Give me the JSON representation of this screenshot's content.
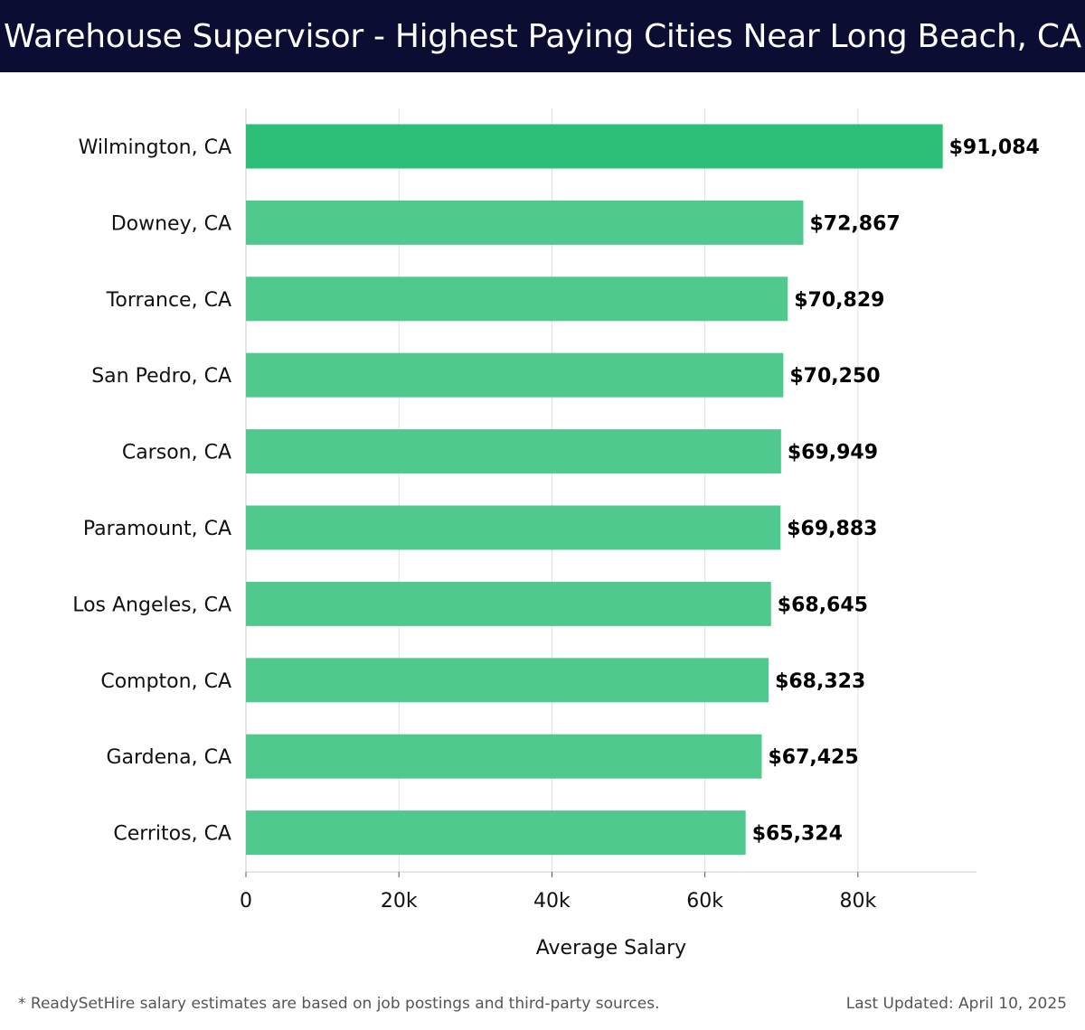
{
  "chart_data": {
    "type": "bar",
    "orientation": "horizontal",
    "title": "Warehouse Supervisor - Highest Paying Cities Near Long Beach, CA",
    "xlabel": "Average Salary",
    "ylabel": "",
    "xlim": [
      0,
      95500
    ],
    "xticks": [
      0,
      20000,
      40000,
      60000,
      80000
    ],
    "xtick_labels": [
      "0",
      "20k",
      "40k",
      "60k",
      "80k"
    ],
    "grid": true,
    "categories": [
      "Wilmington, CA",
      "Downey, CA",
      "Torrance, CA",
      "San Pedro, CA",
      "Carson, CA",
      "Paramount, CA",
      "Los Angeles, CA",
      "Compton, CA",
      "Gardena, CA",
      "Cerritos, CA"
    ],
    "values": [
      91084,
      72867,
      70829,
      70250,
      69949,
      69883,
      68645,
      68323,
      67425,
      65324
    ],
    "value_labels": [
      "$91,084",
      "$72,867",
      "$70,829",
      "$70,250",
      "$69,949",
      "$69,883",
      "$68,645",
      "$68,323",
      "$67,425",
      "$65,324"
    ],
    "colors": {
      "highlight": "#2bbf78",
      "bar": "#50c98e",
      "title_bg": "#0b0d33",
      "grid": "#e0e0e0"
    }
  },
  "footer": {
    "note": "* ReadySetHire salary estimates are based on job postings and third-party sources.",
    "updated": "Last Updated: April 10, 2025"
  }
}
